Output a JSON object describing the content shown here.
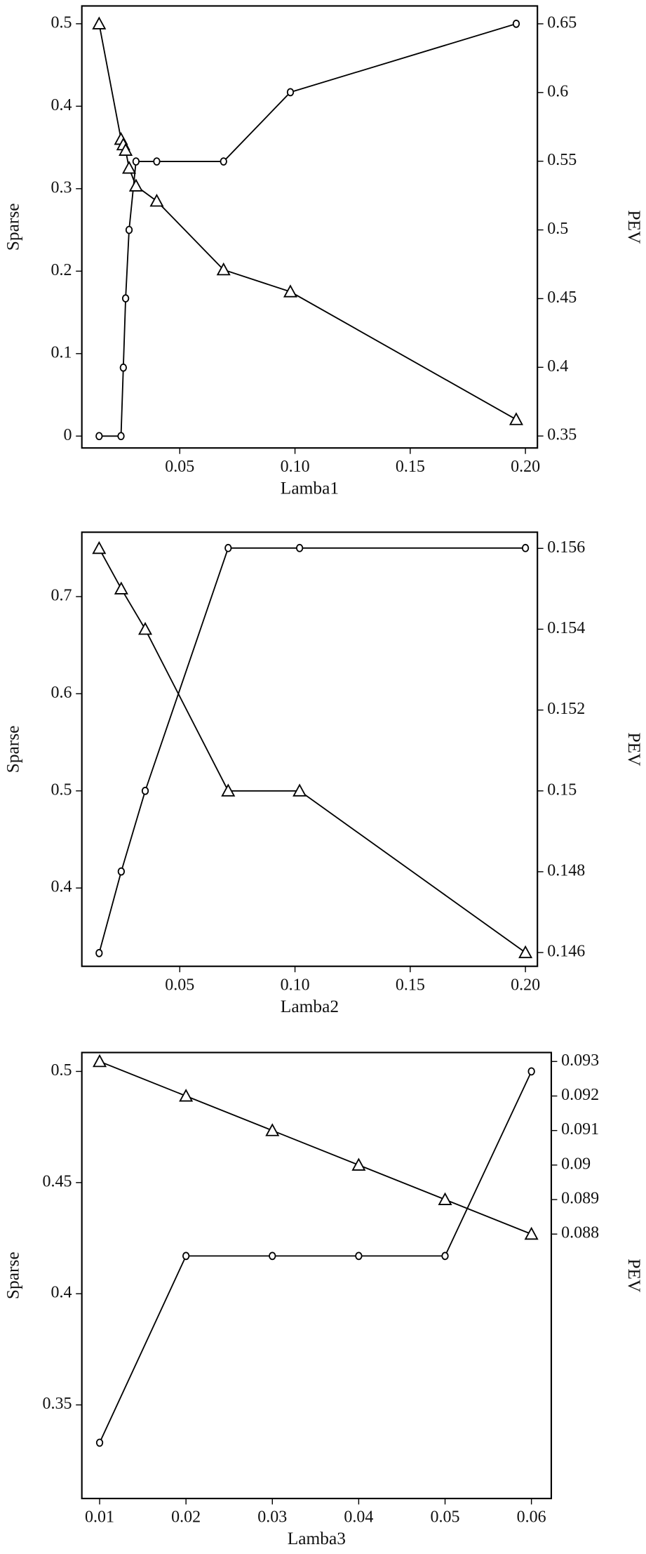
{
  "chart_data": [
    {
      "type": "line",
      "xlabel": "Lamba1",
      "ylabel": "Sparse",
      "y2label": "PEV",
      "xlim": [
        0.0075,
        0.2052
      ],
      "xticks": [
        0.05,
        {
          "value": 0.1,
          "label": "0.10"
        },
        0.15,
        {
          "value": 0.2,
          "label": "0.20"
        }
      ],
      "ylim": [
        -0.0144,
        0.5216
      ],
      "yticks": [
        0,
        0.1,
        0.2,
        0.3,
        0.4,
        0.5
      ],
      "y2lim": [
        0.3413,
        0.663
      ],
      "y2ticks": [
        0.35,
        0.4,
        0.45,
        0.5,
        0.55,
        0.6,
        0.65
      ],
      "series": [
        {
          "marker": "circle",
          "color": "#000000",
          "x": [
            0.015,
            0.0245,
            0.0255,
            0.0265,
            0.028,
            0.031,
            0.04,
            0.069,
            0.098,
            0.196
          ],
          "values": [
            0,
            0,
            0.083,
            0.167,
            0.25,
            0.333,
            0.333,
            0.333,
            0.417,
            0.5
          ]
        },
        {
          "marker": "triangle",
          "color": "#000000",
          "axis": "y2",
          "x": [
            0.015,
            0.0245,
            0.0255,
            0.0265,
            0.028,
            0.031,
            0.04,
            0.069,
            0.098,
            0.196
          ],
          "values": [
            0.65,
            0.566,
            0.562,
            0.558,
            0.545,
            0.532,
            0.521,
            0.471,
            0.455,
            0.362
          ]
        }
      ]
    },
    {
      "type": "line",
      "xlabel": "Lamba2",
      "ylabel": "Sparse",
      "y2label": "PEV",
      "xlim": [
        0.0075,
        0.2052
      ],
      "xticks": [
        0.05,
        {
          "value": 0.1,
          "label": "0.10"
        },
        0.15,
        {
          "value": 0.2,
          "label": "0.20"
        }
      ],
      "ylim": [
        0.3194,
        0.7663
      ],
      "yticks": [
        0.4,
        0.5,
        0.6,
        0.7
      ],
      "y2lim": [
        0.14566,
        0.1564
      ],
      "y2ticks": [
        0.146,
        0.148,
        0.15,
        0.152,
        0.154,
        0.156
      ],
      "series": [
        {
          "marker": "circle",
          "color": "#000000",
          "x": [
            0.015,
            0.0246,
            0.035,
            0.071,
            0.102,
            0.2
          ],
          "values": [
            0.333,
            0.417,
            0.5,
            0.75,
            0.75,
            0.75
          ]
        },
        {
          "marker": "triangle",
          "color": "#000000",
          "axis": "y2",
          "x": [
            0.015,
            0.0246,
            0.035,
            0.071,
            0.102,
            0.2
          ],
          "values": [
            0.156,
            0.155,
            0.154,
            0.15,
            0.15,
            0.146
          ]
        }
      ]
    },
    {
      "type": "line",
      "xlabel": "Lamba3",
      "ylabel": "Sparse",
      "y2label": "PEV",
      "xlim": [
        0.00794,
        0.0623
      ],
      "xticks": [
        0.01,
        0.02,
        0.03,
        0.04,
        0.05,
        0.06
      ],
      "ylim": [
        0.3079,
        0.5085
      ],
      "yticks": [
        0.35,
        0.4,
        0.45,
        0.5
      ],
      "y2lim": [
        0.08034,
        0.09326
      ],
      "y2ticks": [
        0.088,
        0.089,
        0.09,
        0.091,
        0.092,
        0.093
      ],
      "series": [
        {
          "marker": "circle",
          "color": "#000000",
          "x": [
            0.01,
            0.02,
            0.03,
            0.04,
            0.05,
            0.06
          ],
          "values": [
            0.333,
            0.417,
            0.417,
            0.417,
            0.417,
            0.5
          ]
        },
        {
          "marker": "triangle",
          "color": "#000000",
          "axis": "y2",
          "x": [
            0.01,
            0.02,
            0.03,
            0.04,
            0.05,
            0.06
          ],
          "values": [
            0.093,
            0.092,
            0.091,
            0.09,
            0.089,
            0.088
          ]
        }
      ]
    }
  ]
}
